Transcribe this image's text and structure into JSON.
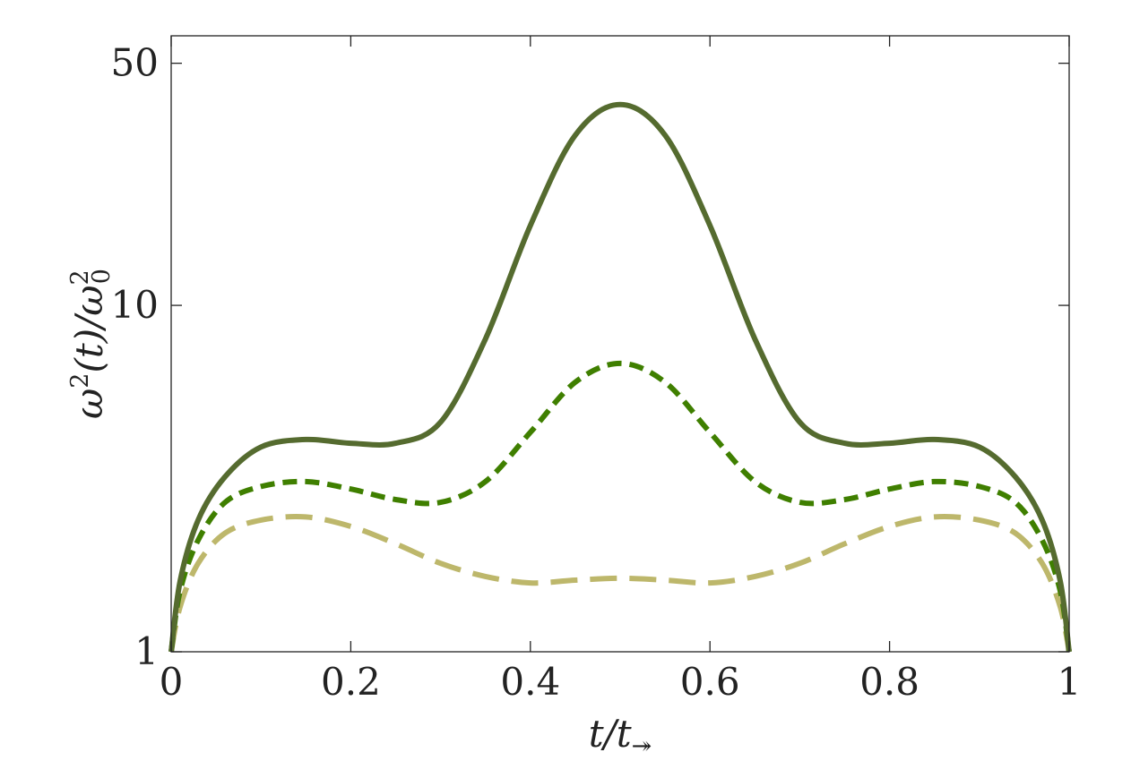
{
  "chart_data": {
    "type": "line",
    "title": "",
    "xlabel": "t/t↠",
    "ylabel": "ω²(t)/ω₀²",
    "xlabel_parts": {
      "t": "t",
      "slash": "/",
      "t2": "t",
      "sub": "↠"
    },
    "ylabel_parts": {
      "omega": "ω",
      "sup": "2",
      "arg": "(t)/",
      "omega2": "ω",
      "sup2": "2",
      "sub2": "0"
    },
    "xlim": [
      0,
      1
    ],
    "ylim": [
      1,
      60
    ],
    "yscale": "log",
    "grid": false,
    "legend": "none",
    "xticks": [
      0,
      0.2,
      0.4,
      0.6,
      0.8,
      1
    ],
    "xtick_labels": [
      "0",
      "0.2",
      "0.4",
      "0.6",
      "0.8",
      "1"
    ],
    "yticks": [
      1,
      10,
      50
    ],
    "ytick_labels": [
      "1",
      "10",
      "50"
    ],
    "x": [
      0,
      0.01,
      0.03,
      0.06,
      0.1,
      0.15,
      0.2,
      0.25,
      0.3,
      0.35,
      0.4,
      0.45,
      0.5,
      0.55,
      0.6,
      0.65,
      0.7,
      0.75,
      0.8,
      0.85,
      0.9,
      0.94,
      0.97,
      0.99,
      1
    ],
    "series": [
      {
        "values": [
          1.0,
          1.6,
          2.4,
          3.2,
          3.9,
          4.1,
          4.0,
          4.0,
          4.6,
          8.0,
          17.0,
          31.0,
          38.0,
          31.0,
          17.0,
          8.0,
          4.6,
          4.0,
          4.0,
          4.1,
          3.9,
          3.2,
          2.4,
          1.6,
          1.0
        ],
        "color": "#556b2f",
        "style": "solid"
      },
      {
        "values": [
          1.0,
          1.5,
          2.1,
          2.7,
          3.0,
          3.1,
          2.95,
          2.75,
          2.7,
          3.1,
          4.3,
          6.0,
          6.8,
          6.0,
          4.3,
          3.1,
          2.7,
          2.75,
          2.95,
          3.1,
          3.0,
          2.7,
          2.1,
          1.5,
          1.0
        ],
        "color": "#3f7f00",
        "style": "dashed"
      },
      {
        "values": [
          1.0,
          1.35,
          1.8,
          2.2,
          2.4,
          2.45,
          2.3,
          2.05,
          1.8,
          1.65,
          1.58,
          1.61,
          1.63,
          1.61,
          1.58,
          1.65,
          1.8,
          2.05,
          2.3,
          2.45,
          2.4,
          2.2,
          1.8,
          1.35,
          1.0
        ],
        "color": "#bdb76b",
        "style": "long-dashed"
      }
    ]
  }
}
